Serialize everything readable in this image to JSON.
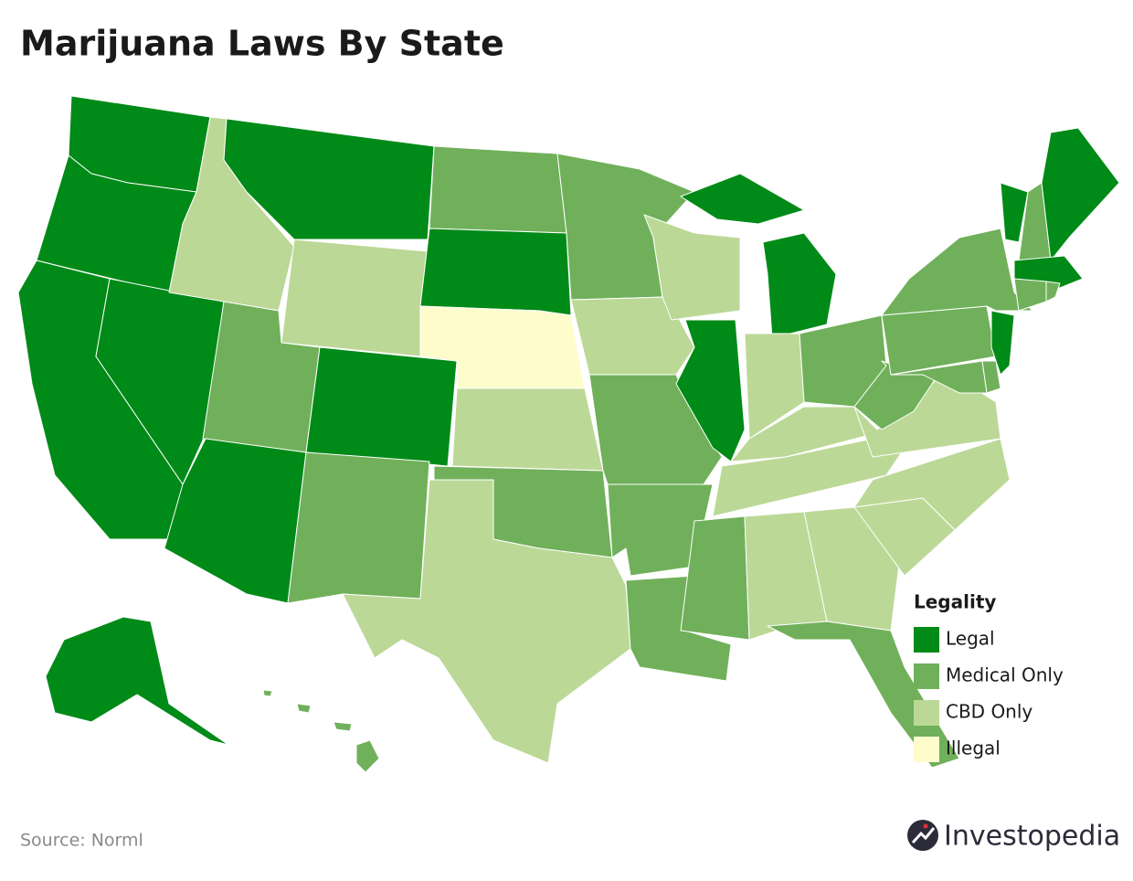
{
  "title": "Marijuana Laws By State",
  "legend": {
    "title": "Legality",
    "items": [
      {
        "label": "Legal",
        "color": "#008a17"
      },
      {
        "label": "Medical Only",
        "color": "#70b05a"
      },
      {
        "label": "CBD Only",
        "color": "#bcd896"
      },
      {
        "label": "Illegal",
        "color": "#fffccc"
      }
    ]
  },
  "source": "Source: Norml",
  "brand": "Investopedia"
}
